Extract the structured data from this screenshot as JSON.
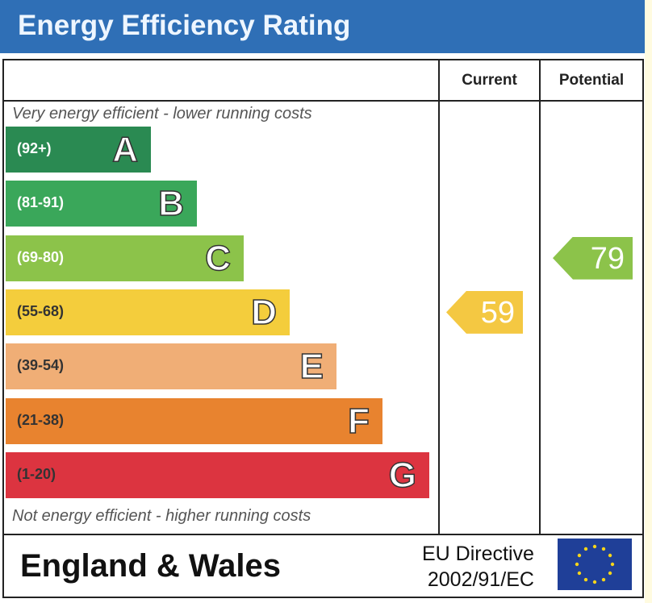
{
  "title": "Energy Efficiency Rating",
  "columns": {
    "current": "Current",
    "potential": "Potential"
  },
  "top_note": "Very energy efficient - lower running costs",
  "bottom_note": "Not energy efficient - higher running costs",
  "footer": {
    "region": "England & Wales",
    "directive_line1": "EU Directive",
    "directive_line2": "2002/91/EC",
    "flag_icon": "eu-flag-icon"
  },
  "chart_data": {
    "type": "bar",
    "title": "Energy Efficiency Rating",
    "bands": [
      {
        "letter": "A",
        "range": "(92+)",
        "color": "#2a8a52"
      },
      {
        "letter": "B",
        "range": "(81-91)",
        "color": "#3aa75a"
      },
      {
        "letter": "C",
        "range": "(69-80)",
        "color": "#8cc34a"
      },
      {
        "letter": "D",
        "range": "(55-68)",
        "color": "#f4cd3c"
      },
      {
        "letter": "E",
        "range": "(39-54)",
        "color": "#f0ae76"
      },
      {
        "letter": "F",
        "range": "(21-38)",
        "color": "#e8832f"
      },
      {
        "letter": "G",
        "range": "(1-20)",
        "color": "#dc3440"
      }
    ],
    "current": {
      "value": 59,
      "band": "D",
      "color": "#f4c842"
    },
    "potential": {
      "value": 79,
      "band": "C",
      "color": "#8cc34a"
    }
  }
}
